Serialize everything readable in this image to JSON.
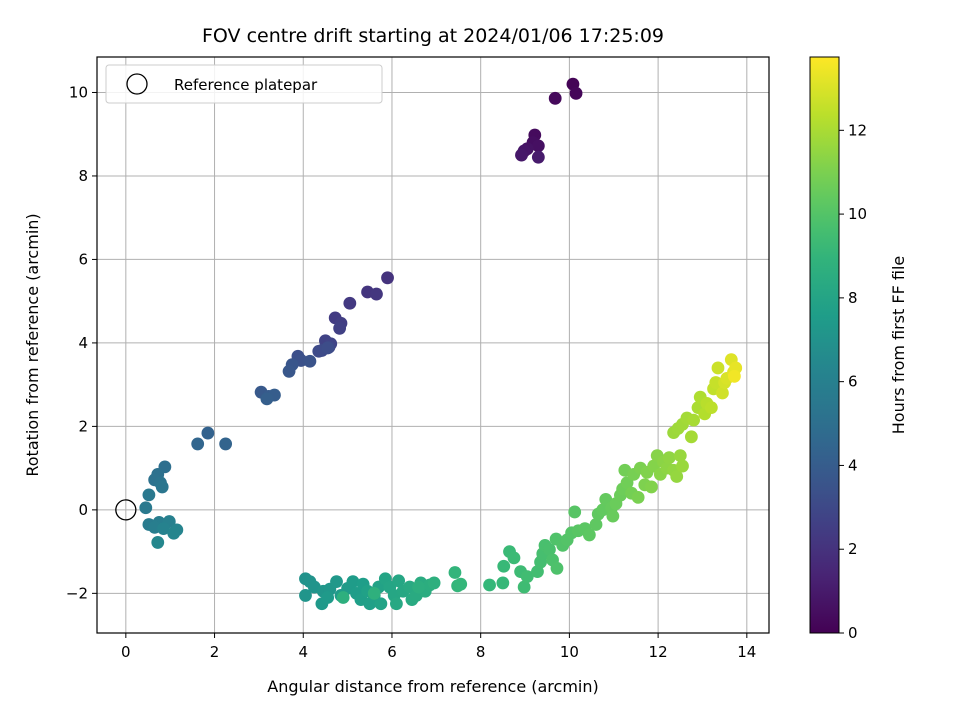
{
  "chart_data": {
    "type": "scatter",
    "title": "FOV centre drift starting at 2024/01/06 17:25:09",
    "xlabel": "Angular distance from reference (arcmin)",
    "ylabel": "Rotation from reference (arcmin)",
    "xlim": [
      -0.65,
      14.5
    ],
    "ylim": [
      -2.95,
      10.85
    ],
    "xticks": [
      0,
      2,
      4,
      6,
      8,
      10,
      12,
      14
    ],
    "yticks": [
      -2,
      0,
      2,
      4,
      6,
      8,
      10
    ],
    "xtick_labels": [
      "0",
      "2",
      "4",
      "6",
      "8",
      "10",
      "12",
      "14"
    ],
    "ytick_labels": [
      "−2",
      "0",
      "2",
      "4",
      "6",
      "8",
      "10"
    ],
    "grid": true,
    "legend": {
      "placement": "top-left",
      "entries": [
        "Reference platepar"
      ]
    },
    "reference_point": {
      "x": 0,
      "y": 0
    },
    "colorbar": {
      "label": "Hours from first FF file",
      "colormap": "viridis",
      "range": [
        0,
        13.75
      ],
      "ticks": [
        0,
        2,
        4,
        6,
        8,
        10,
        12
      ],
      "tick_labels": [
        "0",
        "2",
        "4",
        "6",
        "8",
        "10",
        "12"
      ]
    },
    "points": [
      [
        10.08,
        10.2,
        0.1
      ],
      [
        10.15,
        9.98,
        0.2
      ],
      [
        9.68,
        9.86,
        0.3
      ],
      [
        9.22,
        8.98,
        0.4
      ],
      [
        9.18,
        8.8,
        0.5
      ],
      [
        9.3,
        8.72,
        0.6
      ],
      [
        9.05,
        8.65,
        0.7
      ],
      [
        8.98,
        8.6,
        0.8
      ],
      [
        8.92,
        8.5,
        0.9
      ],
      [
        9.3,
        8.45,
        1.0
      ],
      [
        5.9,
        5.56,
        2.0
      ],
      [
        5.45,
        5.22,
        2.1
      ],
      [
        5.65,
        5.17,
        2.2
      ],
      [
        5.05,
        4.95,
        2.3
      ],
      [
        4.72,
        4.6,
        2.4
      ],
      [
        4.85,
        4.47,
        2.5
      ],
      [
        4.82,
        4.35,
        2.6
      ],
      [
        4.5,
        4.05,
        2.7
      ],
      [
        4.62,
        3.98,
        2.8
      ],
      [
        4.58,
        3.9,
        2.9
      ],
      [
        4.42,
        3.82,
        3.0
      ],
      [
        4.35,
        3.8,
        3.1
      ],
      [
        4.55,
        3.88,
        3.2
      ],
      [
        3.88,
        3.68,
        3.3
      ],
      [
        3.95,
        3.58,
        3.4
      ],
      [
        4.15,
        3.56,
        3.5
      ],
      [
        3.75,
        3.48,
        3.6
      ],
      [
        3.68,
        3.32,
        3.7
      ],
      [
        3.05,
        2.82,
        3.8
      ],
      [
        3.22,
        2.72,
        3.9
      ],
      [
        3.35,
        2.75,
        4.0
      ],
      [
        3.18,
        2.66,
        4.1
      ],
      [
        1.85,
        1.84,
        4.3
      ],
      [
        2.25,
        1.58,
        4.4
      ],
      [
        1.62,
        1.58,
        4.5
      ],
      [
        0.88,
        1.03,
        5.0
      ],
      [
        0.72,
        0.85,
        5.1
      ],
      [
        0.65,
        0.72,
        5.2
      ],
      [
        0.78,
        0.65,
        5.3
      ],
      [
        0.82,
        0.55,
        5.4
      ],
      [
        0.52,
        0.36,
        5.5
      ],
      [
        0.45,
        0.05,
        5.6
      ],
      [
        0.52,
        -0.35,
        5.7
      ],
      [
        0.75,
        -0.3,
        5.8
      ],
      [
        0.65,
        -0.42,
        5.9
      ],
      [
        0.98,
        -0.28,
        6.0
      ],
      [
        0.85,
        -0.45,
        6.1
      ],
      [
        1.15,
        -0.48,
        6.2
      ],
      [
        1.08,
        -0.56,
        6.3
      ],
      [
        0.72,
        -0.78,
        6.4
      ],
      [
        4.05,
        -1.65,
        7.0
      ],
      [
        4.15,
        -1.72,
        7.05
      ],
      [
        4.25,
        -1.85,
        7.1
      ],
      [
        4.05,
        -2.05,
        7.15
      ],
      [
        4.45,
        -1.95,
        7.2
      ],
      [
        4.6,
        -1.9,
        7.25
      ],
      [
        4.75,
        -1.72,
        7.3
      ],
      [
        4.42,
        -2.25,
        7.35
      ],
      [
        4.55,
        -2.1,
        7.4
      ],
      [
        4.85,
        -2.05,
        7.45
      ],
      [
        5.0,
        -1.88,
        7.5
      ],
      [
        5.12,
        -1.72,
        7.55
      ],
      [
        5.2,
        -2.0,
        7.6
      ],
      [
        5.35,
        -1.78,
        7.65
      ],
      [
        5.3,
        -2.15,
        7.7
      ],
      [
        5.5,
        -2.25,
        7.75
      ],
      [
        5.45,
        -1.95,
        7.8
      ],
      [
        5.6,
        -2.05,
        7.85
      ],
      [
        5.7,
        -1.85,
        7.9
      ],
      [
        5.75,
        -2.25,
        7.95
      ],
      [
        5.85,
        -1.65,
        8.0
      ],
      [
        5.95,
        -1.85,
        8.05
      ],
      [
        6.05,
        -2.05,
        8.1
      ],
      [
        6.15,
        -1.7,
        8.15
      ],
      [
        6.25,
        -1.95,
        8.2
      ],
      [
        6.1,
        -2.25,
        8.25
      ],
      [
        6.4,
        -1.85,
        8.3
      ],
      [
        6.45,
        -2.15,
        8.35
      ],
      [
        6.55,
        -2.05,
        8.4
      ],
      [
        6.65,
        -1.75,
        8.45
      ],
      [
        6.75,
        -1.95,
        8.5
      ],
      [
        6.85,
        -1.8,
        8.55
      ],
      [
        6.6,
        -1.85,
        8.6
      ],
      [
        6.95,
        -1.75,
        8.65
      ],
      [
        4.9,
        -2.1,
        8.7
      ],
      [
        5.6,
        -2.0,
        8.75
      ],
      [
        7.42,
        -1.5,
        9.0
      ],
      [
        7.48,
        -1.82,
        9.05
      ],
      [
        7.55,
        -1.78,
        9.1
      ],
      [
        8.2,
        -1.8,
        9.15
      ],
      [
        8.5,
        -1.75,
        9.2
      ],
      [
        8.52,
        -1.35,
        9.25
      ],
      [
        8.65,
        -1.0,
        9.3
      ],
      [
        8.75,
        -1.15,
        9.35
      ],
      [
        8.9,
        -1.48,
        9.4
      ],
      [
        8.98,
        -1.85,
        9.45
      ],
      [
        9.05,
        -1.6,
        9.5
      ],
      [
        9.28,
        -1.48,
        9.55
      ],
      [
        9.35,
        -1.25,
        9.6
      ],
      [
        9.4,
        -1.05,
        9.65
      ],
      [
        9.45,
        -0.85,
        9.7
      ],
      [
        9.55,
        -0.95,
        9.75
      ],
      [
        9.62,
        -1.2,
        9.8
      ],
      [
        9.72,
        -1.4,
        9.85
      ],
      [
        9.7,
        -0.7,
        9.9
      ],
      [
        9.85,
        -0.85,
        9.95
      ],
      [
        9.95,
        -0.72,
        10.0
      ],
      [
        10.05,
        -0.55,
        10.05
      ],
      [
        10.12,
        -0.05,
        10.1
      ],
      [
        10.2,
        -0.5,
        10.15
      ],
      [
        10.35,
        -0.45,
        10.2
      ],
      [
        10.45,
        -0.6,
        10.25
      ],
      [
        10.6,
        -0.35,
        10.3
      ],
      [
        10.65,
        -0.1,
        10.35
      ],
      [
        10.75,
        0.0,
        10.4
      ],
      [
        10.82,
        0.25,
        10.45
      ],
      [
        10.95,
        0.05,
        10.5
      ],
      [
        10.98,
        -0.15,
        10.55
      ],
      [
        11.05,
        0.15,
        10.6
      ],
      [
        11.15,
        0.35,
        10.65
      ],
      [
        11.2,
        0.5,
        10.7
      ],
      [
        11.3,
        0.65,
        10.75
      ],
      [
        11.25,
        0.95,
        10.8
      ],
      [
        11.4,
        0.4,
        10.85
      ],
      [
        11.45,
        0.85,
        10.9
      ],
      [
        11.55,
        0.3,
        10.95
      ],
      [
        11.6,
        1.0,
        11.0
      ],
      [
        11.7,
        0.6,
        11.05
      ],
      [
        11.75,
        0.9,
        11.1
      ],
      [
        11.85,
        0.55,
        11.15
      ],
      [
        11.9,
        1.05,
        11.2
      ],
      [
        11.98,
        1.3,
        11.25
      ],
      [
        12.05,
        0.85,
        11.3
      ],
      [
        12.12,
        1.15,
        11.35
      ],
      [
        12.2,
        1.0,
        11.4
      ],
      [
        12.25,
        1.25,
        11.45
      ],
      [
        12.35,
        0.95,
        11.5
      ],
      [
        12.42,
        0.8,
        11.55
      ],
      [
        12.5,
        1.3,
        11.6
      ],
      [
        12.55,
        1.05,
        11.65
      ],
      [
        12.35,
        1.85,
        11.7
      ],
      [
        12.45,
        1.95,
        11.75
      ],
      [
        12.55,
        2.05,
        11.8
      ],
      [
        12.65,
        2.2,
        11.85
      ],
      [
        12.75,
        1.75,
        11.9
      ],
      [
        12.8,
        2.15,
        11.95
      ],
      [
        12.9,
        2.45,
        12.0
      ],
      [
        12.95,
        2.7,
        12.1
      ],
      [
        13.05,
        2.3,
        12.2
      ],
      [
        13.1,
        2.55,
        12.3
      ],
      [
        13.2,
        2.45,
        12.4
      ],
      [
        13.25,
        2.9,
        12.5
      ],
      [
        13.3,
        3.05,
        12.6
      ],
      [
        13.35,
        3.4,
        12.7
      ],
      [
        13.45,
        2.8,
        12.8
      ],
      [
        13.5,
        3.05,
        12.9
      ],
      [
        13.55,
        3.15,
        13.0
      ],
      [
        13.65,
        3.6,
        13.1
      ],
      [
        13.7,
        3.3,
        13.2
      ],
      [
        13.75,
        3.4,
        13.3
      ],
      [
        13.72,
        3.2,
        13.5
      ]
    ]
  }
}
